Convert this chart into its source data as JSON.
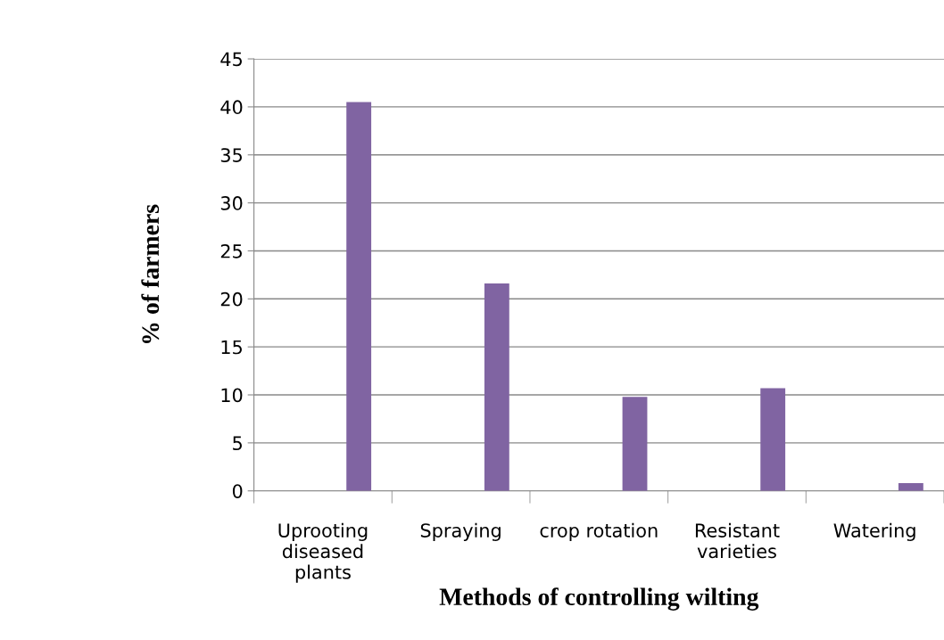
{
  "chart_data": {
    "type": "bar",
    "categories": [
      "Uprooting\ndiseased\nplants",
      "Spraying",
      "crop rotation",
      "Resistant\nvarieties",
      "Watering"
    ],
    "values": [
      40.5,
      21.6,
      9.8,
      10.7,
      0.8
    ],
    "color": "#8064a2",
    "xlabel": "Methods of controlling wilting",
    "ylabel": "% of farmers",
    "ylim": [
      0,
      45
    ],
    "yticks": [
      0,
      5,
      10,
      15,
      20,
      25,
      30,
      35,
      40,
      45
    ],
    "grid": "y",
    "legend": false
  }
}
